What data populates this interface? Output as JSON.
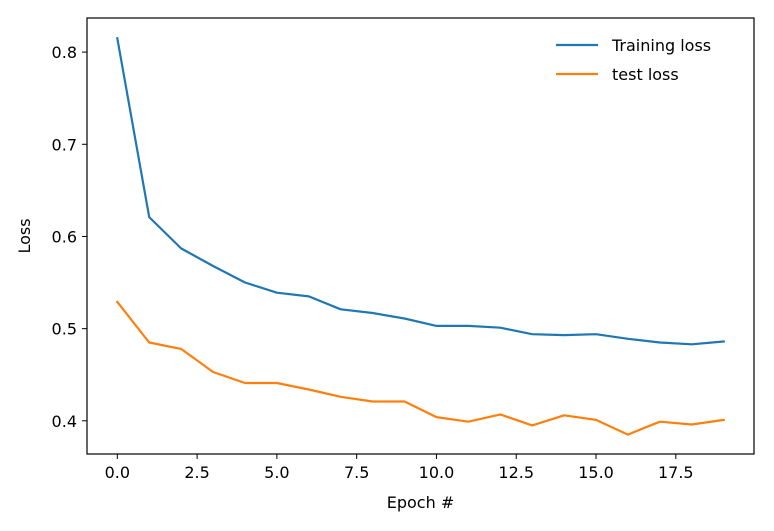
{
  "chart_data": {
    "type": "line",
    "title": "",
    "xlabel": "Epoch #",
    "ylabel": "Loss",
    "x": [
      0,
      1,
      2,
      3,
      4,
      5,
      6,
      7,
      8,
      9,
      10,
      11,
      12,
      13,
      14,
      15,
      16,
      17,
      18,
      19
    ],
    "series": [
      {
        "name": "Training loss",
        "color": "#1f77b4",
        "values": [
          0.815,
          0.621,
          0.587,
          0.568,
          0.55,
          0.539,
          0.535,
          0.521,
          0.517,
          0.511,
          0.503,
          0.503,
          0.501,
          0.494,
          0.493,
          0.494,
          0.489,
          0.485,
          0.483,
          0.486
        ]
      },
      {
        "name": "test loss",
        "color": "#ff7f0e",
        "values": [
          0.529,
          0.485,
          0.478,
          0.453,
          0.441,
          0.441,
          0.434,
          0.426,
          0.421,
          0.421,
          0.404,
          0.399,
          0.407,
          0.395,
          0.406,
          0.401,
          0.385,
          0.399,
          0.396,
          0.401
        ]
      }
    ],
    "xlim": [
      -0.95,
      19.95
    ],
    "ylim": [
      0.364,
      0.837
    ],
    "xticks": [
      0.0,
      2.5,
      5.0,
      7.5,
      10.0,
      12.5,
      15.0,
      17.5
    ],
    "xtick_labels": [
      "0.0",
      "2.5",
      "5.0",
      "7.5",
      "10.0",
      "12.5",
      "15.0",
      "17.5"
    ],
    "yticks": [
      0.4,
      0.5,
      0.6,
      0.7,
      0.8
    ],
    "ytick_labels": [
      "0.4",
      "0.5",
      "0.6",
      "0.7",
      "0.8"
    ],
    "grid": false,
    "legend_position": "top-right"
  }
}
